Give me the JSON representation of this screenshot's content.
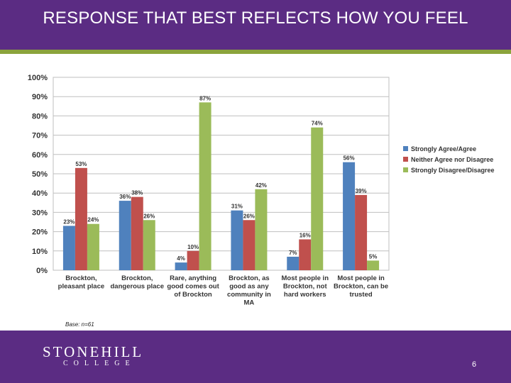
{
  "header": {
    "title": "RESPONSE THAT BEST REFLECTS HOW YOU FEEL"
  },
  "footer": {
    "logo_main": "STONEHILL",
    "logo_sub": "COLLEGE",
    "page_number": "6"
  },
  "note": "Base: n=61",
  "colors": {
    "header_bg": "#5b2c83",
    "rule": "#8ba33c",
    "agree": "#4f81bd",
    "neither": "#c0504d",
    "disagree": "#9bbb59"
  },
  "chart_data": {
    "type": "bar",
    "categories": [
      [
        "Brockton,",
        "pleasant place"
      ],
      [
        "Brockton,",
        "dangerous place"
      ],
      [
        "Rare, anything",
        "good comes out",
        "of Brockton"
      ],
      [
        "Brockton, as",
        "good as any",
        "community in",
        "MA"
      ],
      [
        "Most people in",
        "Brockton, not",
        "hard workers"
      ],
      [
        "Most people in",
        "Brockton, can be",
        "trusted"
      ]
    ],
    "series": [
      {
        "name": "Strongly Agree/Agree",
        "color": "#4f81bd",
        "values": [
          23,
          36,
          4,
          31,
          7,
          56
        ]
      },
      {
        "name": "Neither Agree nor Disagree",
        "color": "#c0504d",
        "values": [
          53,
          38,
          10,
          26,
          16,
          39
        ]
      },
      {
        "name": "Strongly Disagree/Disagree",
        "color": "#9bbb59",
        "values": [
          24,
          26,
          87,
          42,
          74,
          5
        ]
      }
    ],
    "ylim": [
      0,
      100
    ],
    "yticks": [
      "0%",
      "10%",
      "20%",
      "30%",
      "40%",
      "50%",
      "60%",
      "70%",
      "80%",
      "90%",
      "100%"
    ],
    "value_suffix": "%",
    "grid": true,
    "legend": "right"
  }
}
